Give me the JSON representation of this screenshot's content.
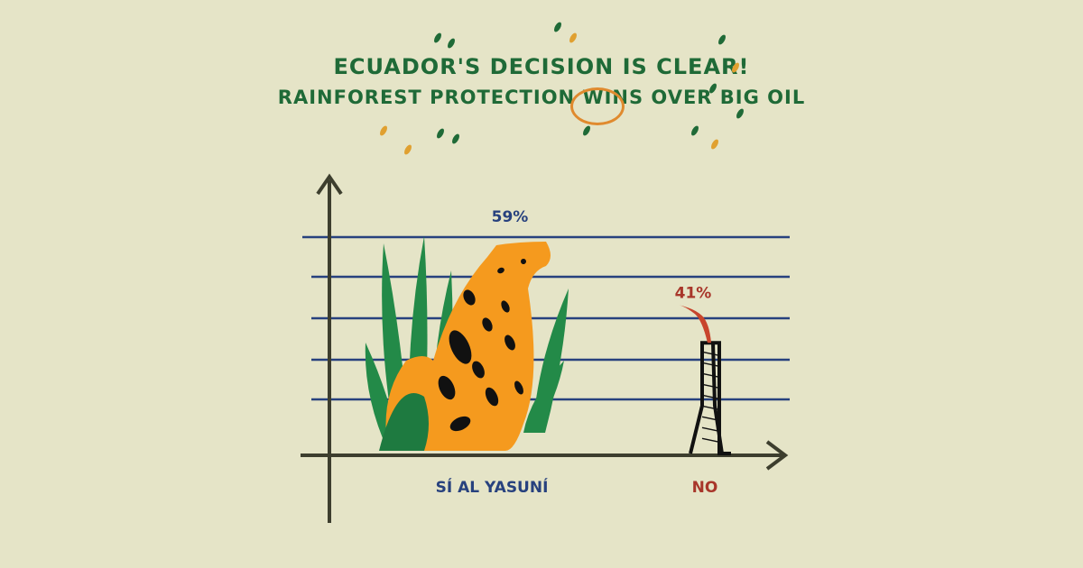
{
  "title_line1": "ECUADOR'S DECISION IS CLEAR!",
  "title_line2": "RAINFOREST PROTECTION WINS OVER BIG OIL",
  "highlighted_word": "WINS",
  "colors": {
    "background": "#e5e4c7",
    "title": "#1f6a37",
    "highlight": "#e08a2e",
    "gridlines": "#27417e",
    "axis": "#3d3e2e",
    "yes": "#f59a1e",
    "no": "#a8362a"
  },
  "chart_data": {
    "type": "bar",
    "categories": [
      "SÍ AL YASUNÍ",
      "NO"
    ],
    "values": [
      59,
      41
    ],
    "data_labels": [
      "59%",
      "41%"
    ],
    "bar_icons": [
      "jaguar-with-plants",
      "oil-rig-flare"
    ],
    "title": "ECUADOR'S DECISION IS CLEAR! RAINFOREST PROTECTION WINS OVER BIG OIL",
    "xlabel": "",
    "ylabel": "",
    "ylim": [
      0,
      70
    ],
    "grid": true
  }
}
